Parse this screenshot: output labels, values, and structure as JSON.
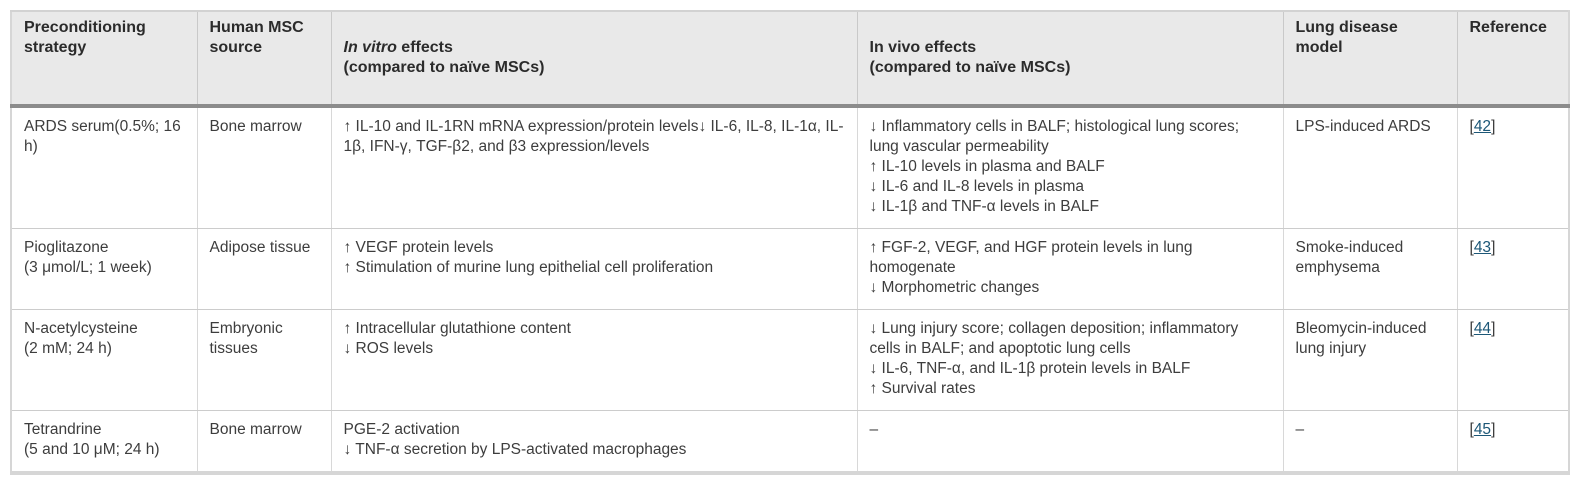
{
  "colors": {
    "header_background": "#e9e9e9",
    "header_underline": "#8c8c8c",
    "cell_border": "#cccccc",
    "outer_border": "#d6d6d6",
    "link": "#1c5777",
    "body_text": "#3d3d3d",
    "header_text": "#2b2b2b"
  },
  "table": {
    "header": {
      "preconditioning": "Preconditioning\nstrategy",
      "source": "Human MSC\nsource",
      "in_vitro": {
        "italic": "In vitro",
        "rest": " effects",
        "sub": "(compared to naïve MSCs)"
      },
      "in_vivo": {
        "main": "In vivo effects",
        "sub": "(compared to naïve MSCs)"
      },
      "model": "Lung disease model",
      "reference": "Reference"
    },
    "reference_format": {
      "open": "[",
      "close": "]"
    },
    "rows": [
      {
        "strategy": "ARDS serum(0.5%; 16\nh)",
        "source": "Bone marrow",
        "in_vitro": "↑ IL-10 and IL-1RN mRNA expression/protein levels↓ IL-6, IL-8, IL-1α, IL-1β, IFN-γ, TGF-β2, and β3 expression/levels",
        "in_vivo": "↓ Inflammatory cells in BALF; histological lung scores; lung vascular permeability\n↑ IL-10 levels in plasma and BALF\n↓ IL-6 and IL-8 levels in plasma\n↓ IL-1β and TNF-α levels in BALF",
        "model": "LPS-induced ARDS",
        "ref": "42"
      },
      {
        "strategy": "Pioglitazone\n(3 μmol/L; 1 week)",
        "source": "Adipose tissue",
        "in_vitro": "↑ VEGF protein levels\n↑ Stimulation of murine lung epithelial cell proliferation",
        "in_vivo": "↑ FGF-2, VEGF, and HGF protein levels in lung homogenate\n↓ Morphometric changes",
        "model": "Smoke-induced emphysema",
        "ref": "43"
      },
      {
        "strategy": "N-acetylcysteine\n(2 mM; 24 h)",
        "source": "Embryonic tissues",
        "in_vitro": "↑ Intracellular glutathione content\n↓ ROS levels",
        "in_vivo": "↓ Lung injury score; collagen deposition; inflammatory cells in BALF; and apoptotic lung cells\n↓ IL-6, TNF-α, and IL-1β protein levels in BALF\n↑ Survival rates",
        "model": "Bleomycin-induced lung injury",
        "ref": "44"
      },
      {
        "strategy": "Tetrandrine\n(5 and 10 μM; 24 h)",
        "source": "Bone marrow",
        "in_vitro": "PGE-2 activation\n↓ TNF-α secretion by LPS-activated macrophages",
        "in_vivo": "–",
        "model": "–",
        "ref": "45"
      }
    ]
  }
}
